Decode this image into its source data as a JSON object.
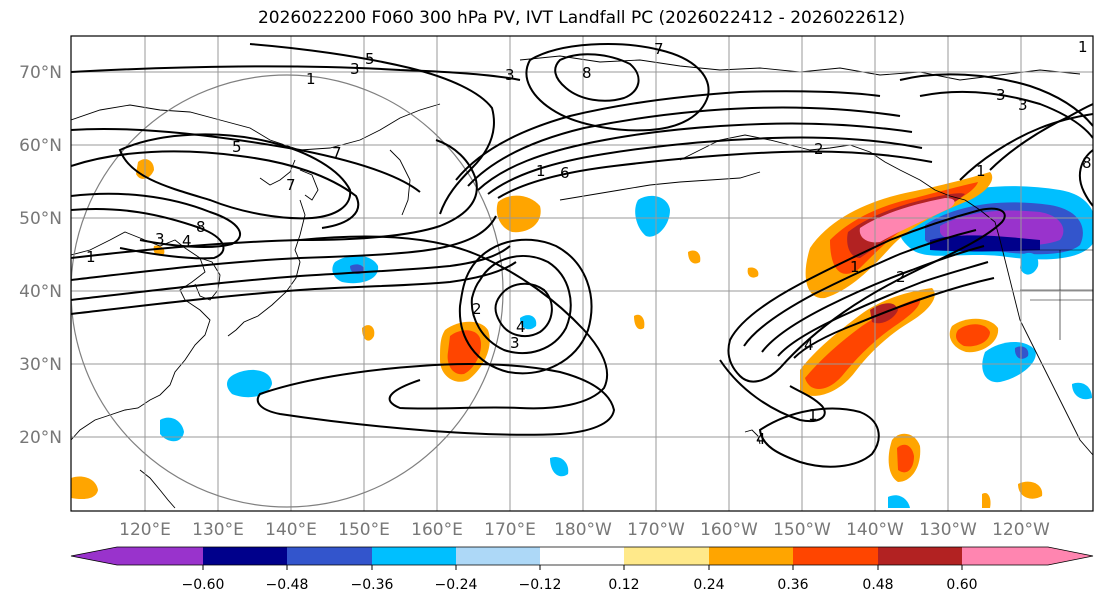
{
  "title": "2026022200 F060 300 hPa PV, IVT Landfall PC (2026022412 - 2026022612)",
  "lat_labels": [
    "70°N",
    "60°N",
    "50°N",
    "40°N",
    "30°N",
    "20°N"
  ],
  "lon_labels": [
    "120°E",
    "130°E",
    "140°E",
    "150°E",
    "160°E",
    "170°E",
    "180°W",
    "170°W",
    "160°W",
    "150°W",
    "140°W",
    "130°W",
    "120°W"
  ],
  "colorbar": {
    "tick_labels": [
      "−0.60",
      "−0.48",
      "−0.36",
      "−0.24",
      "−0.12",
      "0.12",
      "0.24",
      "0.36",
      "0.48",
      "0.60"
    ],
    "colors": [
      "#9933cc",
      "#00008b",
      "#3355cc",
      "#00bfff",
      "#add8f7",
      "#ffffff",
      "#ffe98a",
      "#ffa500",
      "#ff4500",
      "#b22222",
      "#ff85b0"
    ]
  },
  "contour_labels": [
    "1",
    "3",
    "5",
    "7",
    "8",
    "7",
    "3",
    "3",
    "5",
    "7",
    "8",
    "6",
    "4",
    "1",
    "2",
    "3",
    "4",
    "1",
    "4",
    "2",
    "1",
    "4",
    "1",
    "2",
    "3",
    "3",
    "8",
    "1",
    "1"
  ],
  "colors": {
    "contour": "#000000",
    "grid": "#999999",
    "coast": "#000000",
    "circle": "#808080"
  }
}
